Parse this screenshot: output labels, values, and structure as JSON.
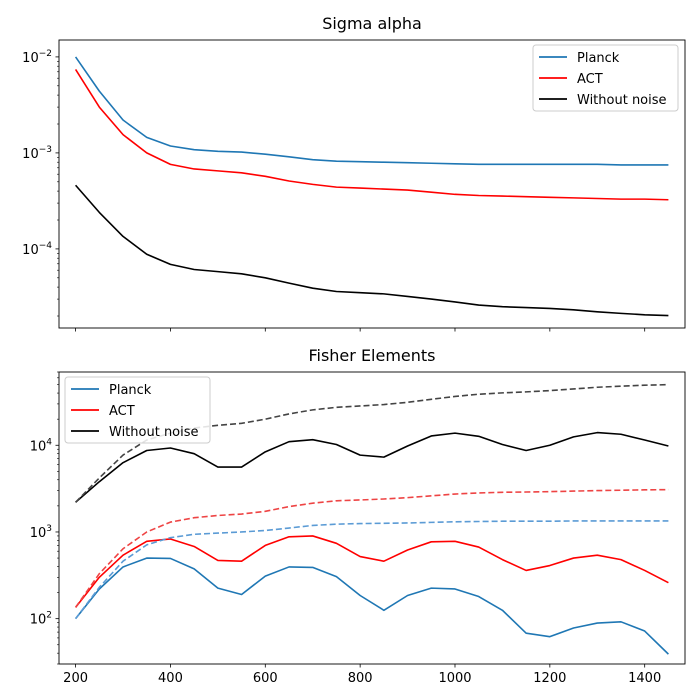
{
  "chart_data": [
    {
      "type": "line",
      "title": "Sigma alpha",
      "yscale": "log",
      "xlim": [
        165,
        1485
      ],
      "ylim": [
        1.5e-05,
        0.015
      ],
      "x_ticks": [
        200,
        400,
        600,
        800,
        1000,
        1200,
        1400
      ],
      "show_x_tick_labels": false,
      "y_ticks": [
        {
          "value": 0.0001,
          "base": "10",
          "exp": "−4"
        },
        {
          "value": 0.001,
          "base": "10",
          "exp": "−3"
        },
        {
          "value": 0.01,
          "base": "10",
          "exp": "−2"
        }
      ],
      "legend": {
        "placement": "upper-right"
      },
      "x": [
        200,
        250,
        300,
        350,
        400,
        450,
        500,
        550,
        600,
        650,
        700,
        750,
        800,
        850,
        900,
        950,
        1000,
        1050,
        1100,
        1150,
        1200,
        1250,
        1300,
        1350,
        1400,
        1450
      ],
      "series": [
        {
          "name": "Planck",
          "color": "#1f77b4",
          "dashed": false,
          "in_legend": true,
          "values": [
            0.01,
            0.0044,
            0.0022,
            0.00145,
            0.00118,
            0.00108,
            0.00104,
            0.00102,
            0.00097,
            0.00091,
            0.00085,
            0.00082,
            0.00081,
            0.0008,
            0.00079,
            0.00078,
            0.00077,
            0.00076,
            0.00076,
            0.00076,
            0.00076,
            0.00076,
            0.00076,
            0.00075,
            0.00075,
            0.00075
          ]
        },
        {
          "name": "ACT",
          "color": "#ff0000",
          "dashed": false,
          "in_legend": true,
          "values": [
            0.0074,
            0.003,
            0.00155,
            0.001,
            0.00076,
            0.00068,
            0.00065,
            0.00062,
            0.00057,
            0.00051,
            0.00047,
            0.00044,
            0.00043,
            0.00042,
            0.00041,
            0.00039,
            0.00037,
            0.00036,
            0.000355,
            0.00035,
            0.000345,
            0.00034,
            0.000335,
            0.00033,
            0.00033,
            0.000325
          ]
        },
        {
          "name": "Without noise",
          "color": "#000000",
          "dashed": false,
          "in_legend": true,
          "values": [
            0.00046,
            0.00024,
            0.000135,
            8.8e-05,
            6.9e-05,
            6.1e-05,
            5.8e-05,
            5.5e-05,
            5e-05,
            4.4e-05,
            3.9e-05,
            3.6e-05,
            3.5e-05,
            3.4e-05,
            3.2e-05,
            3e-05,
            2.8e-05,
            2.6e-05,
            2.5e-05,
            2.45e-05,
            2.4e-05,
            2.32e-05,
            2.21e-05,
            2.13e-05,
            2.06e-05,
            2.02e-05
          ]
        }
      ]
    },
    {
      "type": "line",
      "title": "Fisher Elements",
      "yscale": "log",
      "xlim": [
        165,
        1485
      ],
      "ylim": [
        30,
        70000
      ],
      "x_ticks": [
        200,
        400,
        600,
        800,
        1000,
        1200,
        1400
      ],
      "show_x_tick_labels": true,
      "y_ticks": [
        {
          "value": 100,
          "base": "10",
          "exp": "2"
        },
        {
          "value": 1000,
          "base": "10",
          "exp": "3"
        },
        {
          "value": 10000,
          "base": "10",
          "exp": "4"
        }
      ],
      "legend": {
        "placement": "upper-left"
      },
      "x": [
        200,
        250,
        300,
        350,
        400,
        450,
        500,
        550,
        600,
        650,
        700,
        750,
        800,
        850,
        900,
        950,
        1000,
        1050,
        1100,
        1150,
        1200,
        1250,
        1300,
        1350,
        1400,
        1450
      ],
      "series": [
        {
          "name": "Planck",
          "color": "#1f77b4",
          "dashed": false,
          "in_legend": true,
          "values": [
            100,
            220,
            395,
            500,
            495,
            375,
            225,
            190,
            310,
            395,
            390,
            305,
            185,
            125,
            185,
            225,
            220,
            180,
            125,
            68,
            62,
            78,
            89,
            92,
            72,
            39
          ]
        },
        {
          "name": "ACT",
          "color": "#ff0000",
          "dashed": false,
          "in_legend": true,
          "values": [
            135,
            300,
            540,
            780,
            830,
            680,
            470,
            460,
            700,
            880,
            900,
            740,
            520,
            460,
            620,
            770,
            780,
            670,
            480,
            360,
            410,
            500,
            540,
            480,
            360,
            260
          ]
        },
        {
          "name": "Without noise",
          "color": "#000000",
          "dashed": false,
          "in_legend": true,
          "values": [
            2200,
            3800,
            6300,
            8700,
            9300,
            8000,
            5600,
            5600,
            8400,
            11000,
            11600,
            10200,
            7700,
            7300,
            9800,
            12800,
            13800,
            12700,
            10200,
            8700,
            10000,
            12500,
            14000,
            13400,
            11500,
            9800
          ]
        },
        {
          "name": "",
          "color": "#5b9bd5",
          "dashed": true,
          "in_legend": false,
          "values": [
            100,
            230,
            460,
            710,
            860,
            940,
            970,
            1000,
            1040,
            1110,
            1190,
            1230,
            1250,
            1260,
            1270,
            1290,
            1310,
            1320,
            1330,
            1330,
            1330,
            1340,
            1340,
            1340,
            1340,
            1340
          ]
        },
        {
          "name": "",
          "color": "#ee4444",
          "dashed": true,
          "in_legend": false,
          "values": [
            135,
            330,
            640,
            1000,
            1300,
            1460,
            1550,
            1610,
            1730,
            1960,
            2150,
            2290,
            2340,
            2400,
            2490,
            2610,
            2740,
            2820,
            2870,
            2890,
            2920,
            2960,
            3000,
            3030,
            3060,
            3080
          ]
        },
        {
          "name": "",
          "color": "#444444",
          "dashed": true,
          "in_legend": false,
          "values": [
            2200,
            4200,
            7700,
            11500,
            13800,
            15800,
            17000,
            17900,
            20000,
            23000,
            25600,
            27400,
            28400,
            29500,
            31300,
            33900,
            36600,
            38800,
            40200,
            41300,
            42700,
            44600,
            46700,
            48000,
            49300,
            50000
          ]
        }
      ]
    }
  ]
}
